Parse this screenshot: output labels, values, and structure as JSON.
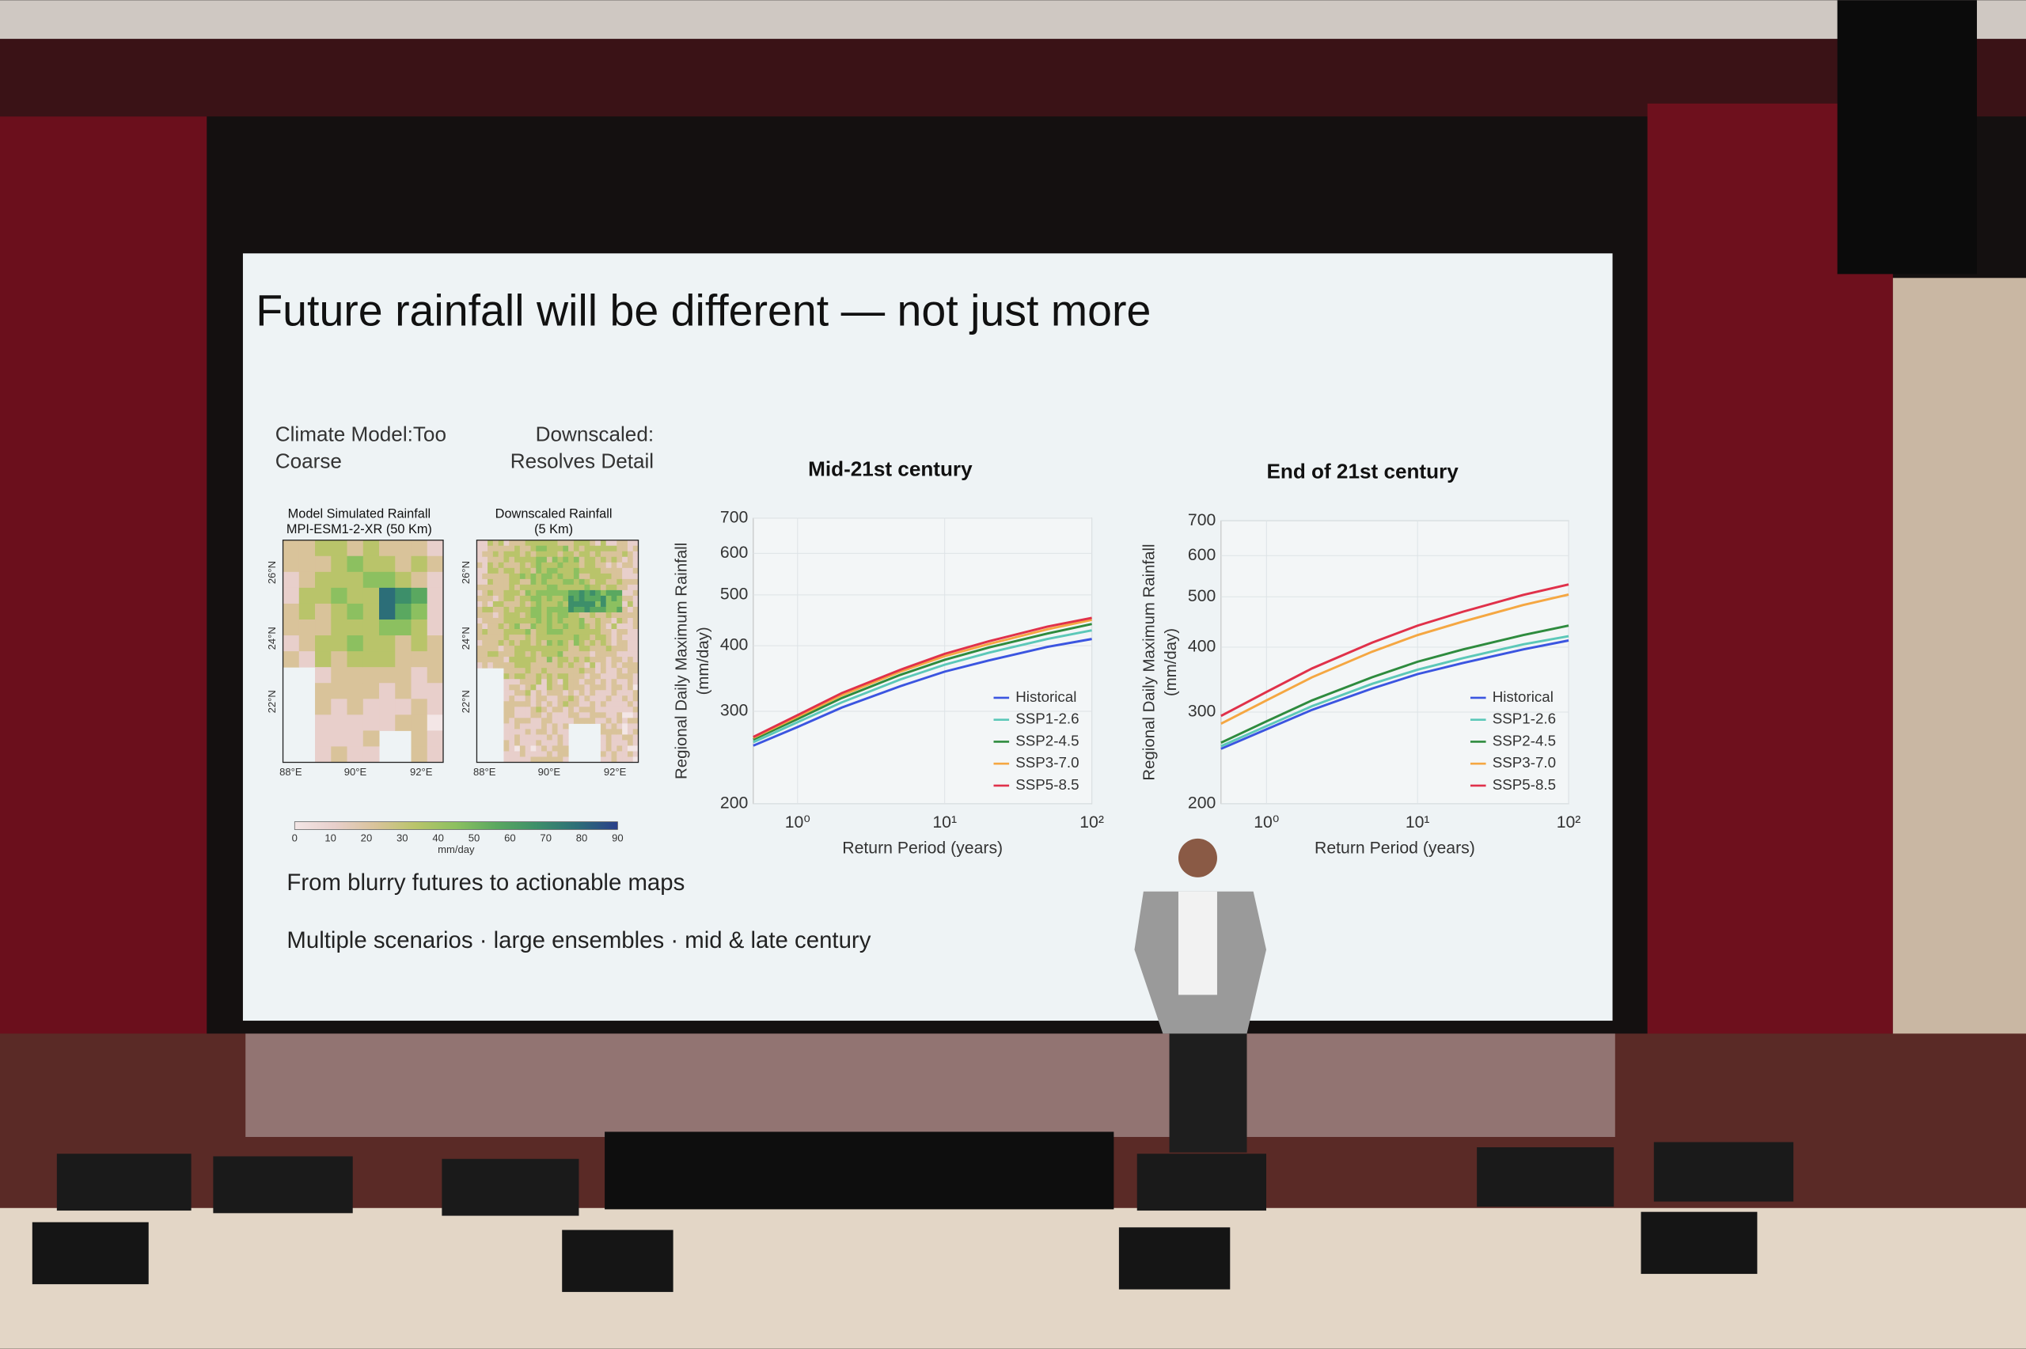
{
  "slide": {
    "title": "Future rainfall will be different — not just more",
    "left_caption": [
      "Climate Model:Too",
      "Coarse"
    ],
    "right_caption": [
      "Downscaled:",
      "Resolves Detail"
    ],
    "maps": [
      {
        "title": [
          "Model Simulated Rainfall",
          "MPI-ESM1-2-XR (50 Km)"
        ],
        "lat_labels": [
          "26°N",
          "24°N",
          "22°N"
        ],
        "lon_labels": [
          "88°E",
          "90°E",
          "92°E"
        ]
      },
      {
        "title": [
          "Downscaled Rainfall",
          "(5 Km)"
        ],
        "lat_labels": [
          "26°N",
          "24°N",
          "22°N"
        ],
        "lon_labels": [
          "88°E",
          "90°E",
          "92°E"
        ]
      }
    ],
    "colorbar": {
      "ticks": [
        0,
        10,
        20,
        30,
        40,
        50,
        60,
        70,
        80,
        90
      ],
      "label": "mm/day"
    },
    "bullets": [
      "From blurry futures to actionable maps",
      "Multiple scenarios · large ensembles · mid & late century"
    ]
  },
  "chart_data": [
    {
      "type": "line",
      "title": "Mid-21st century",
      "xlabel": "Return Period (years)",
      "ylabel": [
        "Regional Daily Maximum Rainfall",
        "(mm/day)"
      ],
      "log_x": true,
      "log_y": true,
      "grid": true,
      "legend": "lower right",
      "xlim": [
        0.5,
        100
      ],
      "ylim": [
        200,
        700
      ],
      "xticks": [
        {
          "value": 1,
          "label": "10⁰"
        },
        {
          "value": 10,
          "label": "10¹"
        },
        {
          "value": 100,
          "label": "10²"
        }
      ],
      "yticks": [
        200,
        300,
        400,
        500,
        600,
        700
      ],
      "x": [
        0.5,
        1,
        2,
        5,
        10,
        20,
        50,
        100
      ],
      "series": [
        {
          "name": "Historical",
          "color": "#3b55e0",
          "values": [
            258,
            280,
            305,
            335,
            357,
            375,
            398,
            412
          ]
        },
        {
          "name": "SSP1-2.6",
          "color": "#5cc8b8",
          "values": [
            262,
            286,
            312,
            345,
            368,
            388,
            412,
            428
          ]
        },
        {
          "name": "SSP2-4.5",
          "color": "#2e8b3e",
          "values": [
            265,
            290,
            318,
            352,
            376,
            397,
            422,
            440
          ]
        },
        {
          "name": "SSP3-7.0",
          "color": "#f5a742",
          "values": [
            267,
            293,
            322,
            357,
            382,
            403,
            430,
            448
          ]
        },
        {
          "name": "SSP5-8.5",
          "color": "#e0314a",
          "values": [
            268,
            295,
            325,
            360,
            386,
            408,
            435,
            452
          ]
        }
      ]
    },
    {
      "type": "line",
      "title": "End of 21st century",
      "xlabel": "Return Period (years)",
      "ylabel": [
        "Regional Daily Maximum Rainfall",
        "(mm/day)"
      ],
      "log_x": true,
      "log_y": true,
      "grid": true,
      "legend": "lower right",
      "xlim": [
        0.5,
        100
      ],
      "ylim": [
        200,
        700
      ],
      "xticks": [
        {
          "value": 1,
          "label": "10⁰"
        },
        {
          "value": 10,
          "label": "10¹"
        },
        {
          "value": 100,
          "label": "10²"
        }
      ],
      "yticks": [
        200,
        300,
        400,
        500,
        600,
        700
      ],
      "x": [
        0.5,
        1,
        2,
        5,
        10,
        20,
        50,
        100
      ],
      "series": [
        {
          "name": "Historical",
          "color": "#3b55e0",
          "values": [
            255,
            278,
            303,
            333,
            355,
            373,
            396,
            412
          ]
        },
        {
          "name": "SSP1-2.6",
          "color": "#5cc8b8",
          "values": [
            258,
            282,
            308,
            340,
            362,
            381,
            405,
            420
          ]
        },
        {
          "name": "SSP2-4.5",
          "color": "#2e8b3e",
          "values": [
            262,
            288,
            316,
            350,
            375,
            396,
            422,
            440
          ]
        },
        {
          "name": "SSP3-7.0",
          "color": "#f5a742",
          "values": [
            285,
            316,
            350,
            392,
            422,
            448,
            482,
            505
          ]
        },
        {
          "name": "SSP5-8.5",
          "color": "#e0314a",
          "values": [
            295,
            328,
            364,
            408,
            440,
            468,
            504,
            528
          ]
        }
      ]
    }
  ]
}
